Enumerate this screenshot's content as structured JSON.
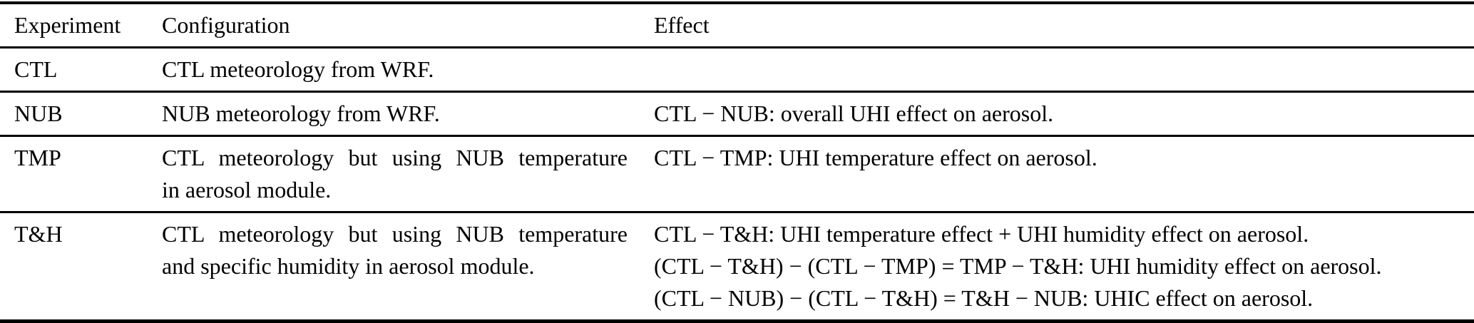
{
  "colors": {
    "text": "#000000",
    "background": "#ffffff",
    "rule": "#000000"
  },
  "table": {
    "columns": [
      "Experiment",
      "Configuration",
      "Effect"
    ],
    "rows": [
      {
        "experiment": "CTL",
        "config_lines": [
          "CTL meteorology from WRF."
        ],
        "effect_lines": []
      },
      {
        "experiment": "NUB",
        "config_lines": [
          "NUB meteorology from WRF."
        ],
        "effect_lines": [
          "CTL − NUB: overall UHI effect on aerosol."
        ]
      },
      {
        "experiment": "TMP",
        "config_lines": [
          "CTL meteorology but using NUB temperature",
          "in aerosol module."
        ],
        "effect_lines": [
          "CTL − TMP: UHI temperature effect on aerosol."
        ]
      },
      {
        "experiment": "T&H",
        "config_lines": [
          "CTL meteorology but using NUB temperature",
          "and specific humidity in aerosol module."
        ],
        "effect_lines": [
          "CTL − T&H: UHI temperature effect + UHI humidity effect on aerosol.",
          "(CTL − T&H) − (CTL − TMP) = TMP − T&H: UHI humidity effect on aerosol.",
          "(CTL − NUB) − (CTL − T&H) = T&H − NUB: UHIC effect on aerosol."
        ]
      }
    ]
  }
}
